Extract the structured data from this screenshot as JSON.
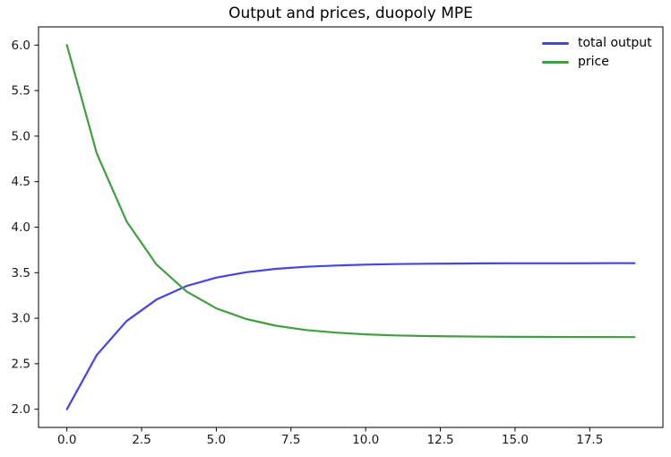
{
  "figure": {
    "background": "#ffffff"
  },
  "chart_data": {
    "type": "line",
    "title": "Output and prices, duopoly MPE",
    "xlabel": "",
    "ylabel": "",
    "x": [
      0,
      1,
      2,
      3,
      4,
      5,
      6,
      7,
      8,
      9,
      10,
      11,
      12,
      13,
      14,
      15,
      16,
      17,
      18,
      19
    ],
    "series": [
      {
        "name": "total output",
        "color": "#4545e6",
        "values": [
          2.0,
          2.595,
          2.969,
          3.205,
          3.353,
          3.446,
          3.505,
          3.542,
          3.565,
          3.579,
          3.589,
          3.594,
          3.598,
          3.6,
          3.602,
          3.603,
          3.603,
          3.603,
          3.604,
          3.604
        ]
      },
      {
        "name": "price",
        "color": "#40a040",
        "values": [
          6.0,
          4.81,
          4.062,
          3.59,
          3.294,
          3.108,
          2.991,
          2.917,
          2.87,
          2.841,
          2.823,
          2.811,
          2.804,
          2.8,
          2.797,
          2.795,
          2.794,
          2.793,
          2.793,
          2.792
        ]
      }
    ],
    "xlim": [
      -0.95,
      19.95
    ],
    "ylim": [
      1.8,
      6.2
    ],
    "x_ticks": [
      0.0,
      2.5,
      5.0,
      7.5,
      10.0,
      12.5,
      15.0,
      17.5
    ],
    "x_tick_labels": [
      "0.0",
      "2.5",
      "5.0",
      "7.5",
      "10.0",
      "12.5",
      "15.0",
      "17.5"
    ],
    "y_ticks": [
      2.0,
      2.5,
      3.0,
      3.5,
      4.0,
      4.5,
      5.0,
      5.5,
      6.0
    ],
    "y_tick_labels": [
      "2.0",
      "2.5",
      "3.0",
      "3.5",
      "4.0",
      "4.5",
      "5.0",
      "5.5",
      "6.0"
    ],
    "grid": false,
    "legend_position": "upper right",
    "axis_color": "#000000",
    "tick_label_color": "#1a1a1a",
    "line_width": 2.2
  }
}
